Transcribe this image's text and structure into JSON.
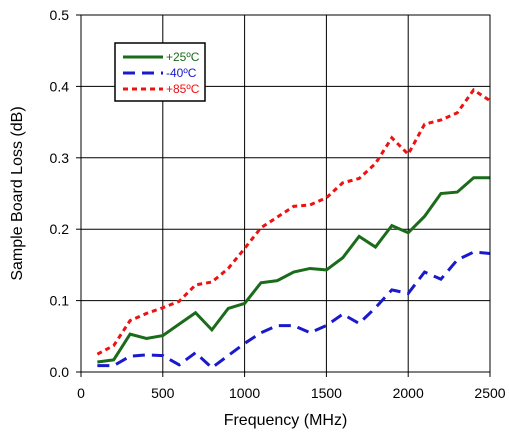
{
  "chart_data": {
    "type": "line",
    "title": "",
    "xlabel": "Frequency (MHz)",
    "ylabel": "Sample Board Loss (dB)",
    "xlim": [
      0,
      2500
    ],
    "ylim": [
      0,
      0.5
    ],
    "xticks": [
      0,
      500,
      1000,
      1500,
      2000,
      2500
    ],
    "xtick_labels": [
      "0",
      "500",
      "1000",
      "1500",
      "2000",
      "2500"
    ],
    "yticks": [
      0.0,
      0.1,
      0.2,
      0.3,
      0.4,
      0.5
    ],
    "ytick_labels": [
      "0.0",
      "0.1",
      "0.2",
      "0.3",
      "0.4",
      "0.5"
    ],
    "grid": true,
    "legend_position": "top-left",
    "series": [
      {
        "name": "+25ºC",
        "color": "#1a6b1a",
        "style": "solid",
        "x": [
          100,
          200,
          300,
          400,
          500,
          600,
          700,
          800,
          900,
          1000,
          1100,
          1200,
          1300,
          1400,
          1500,
          1600,
          1700,
          1800,
          1900,
          2000,
          2100,
          2200,
          2300,
          2400,
          2500
        ],
        "y": [
          0.014,
          0.017,
          0.053,
          0.047,
          0.051,
          0.067,
          0.083,
          0.059,
          0.089,
          0.096,
          0.125,
          0.128,
          0.14,
          0.145,
          0.143,
          0.16,
          0.19,
          0.175,
          0.205,
          0.195,
          0.218,
          0.25,
          0.252,
          0.272,
          0.272
        ]
      },
      {
        "name": "-40ºC",
        "color": "#1a1acc",
        "style": "dashed",
        "x": [
          100,
          200,
          300,
          400,
          500,
          600,
          700,
          800,
          900,
          1000,
          1100,
          1200,
          1300,
          1400,
          1500,
          1600,
          1700,
          1800,
          1900,
          2000,
          2100,
          2200,
          2300,
          2400,
          2500
        ],
        "y": [
          0.009,
          0.009,
          0.022,
          0.024,
          0.023,
          0.01,
          0.027,
          0.006,
          0.023,
          0.04,
          0.055,
          0.065,
          0.065,
          0.055,
          0.065,
          0.081,
          0.068,
          0.09,
          0.115,
          0.11,
          0.14,
          0.13,
          0.157,
          0.168,
          0.166
        ]
      },
      {
        "name": "+85ºC",
        "color": "#ee1111",
        "style": "dotted",
        "x": [
          100,
          200,
          300,
          400,
          500,
          600,
          700,
          800,
          900,
          1000,
          1100,
          1200,
          1300,
          1400,
          1500,
          1600,
          1700,
          1800,
          1900,
          2000,
          2100,
          2200,
          2300,
          2400,
          2500
        ],
        "y": [
          0.025,
          0.037,
          0.072,
          0.082,
          0.09,
          0.099,
          0.122,
          0.126,
          0.145,
          0.173,
          0.202,
          0.217,
          0.232,
          0.234,
          0.244,
          0.265,
          0.271,
          0.292,
          0.328,
          0.305,
          0.347,
          0.353,
          0.363,
          0.395,
          0.38
        ]
      }
    ]
  }
}
